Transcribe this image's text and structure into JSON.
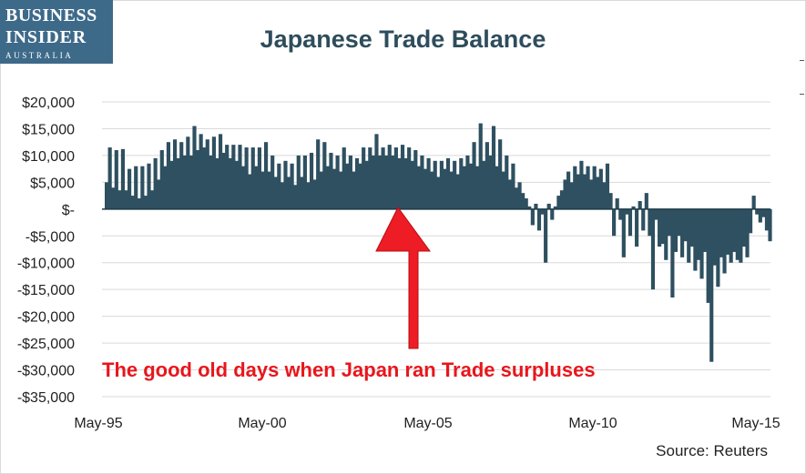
{
  "logo": {
    "line1": "BUSINESS",
    "line2": "INSIDER",
    "line3": "AUSTRALIA"
  },
  "annotation": "The good old days when Japan ran Trade surpluses",
  "colors": {
    "bars": "#2e5060",
    "title": "#2e4d5c",
    "annotation": "#e8161c",
    "grid": "#d9d9d9",
    "arrow": "#ee1c24"
  },
  "chart_data": {
    "type": "bar",
    "title": "Japanese Trade Balance",
    "source": "Source: Reuters",
    "xlabel": "",
    "ylabel": "",
    "ylim": [
      -35000,
      20000
    ],
    "yticks": [
      20000,
      15000,
      10000,
      5000,
      0,
      -5000,
      -10000,
      -15000,
      -20000,
      -25000,
      -30000,
      -35000
    ],
    "ytick_labels": [
      "$20,000",
      "$15,000",
      "$10,000",
      "$5,000",
      "$-",
      "-$5,000",
      "-$10,000",
      "-$15,000",
      "-$20,000",
      "-$25,000",
      "-$30,000",
      "-$35,000"
    ],
    "xtick_labels": [
      "May-95",
      "May-00",
      "May-05",
      "May-10",
      "May-15"
    ],
    "grid": true,
    "legend": "none",
    "keyframes": [
      [
        0,
        5000
      ],
      [
        1,
        11500
      ],
      [
        2,
        4000
      ],
      [
        3,
        11000
      ],
      [
        4,
        3500
      ],
      [
        5,
        11200
      ],
      [
        6,
        3500
      ],
      [
        7,
        7500
      ],
      [
        8,
        2500
      ],
      [
        9,
        8000
      ],
      [
        10,
        2000
      ],
      [
        11,
        8000
      ],
      [
        12,
        2500
      ],
      [
        13,
        8500
      ],
      [
        14,
        3500
      ],
      [
        15,
        9500
      ],
      [
        16,
        5500
      ],
      [
        17,
        11000
      ],
      [
        18,
        8000
      ],
      [
        19,
        12500
      ],
      [
        20,
        9000
      ],
      [
        21,
        13000
      ],
      [
        22,
        9500
      ],
      [
        23,
        12500
      ],
      [
        24,
        10000
      ],
      [
        25,
        13500
      ],
      [
        26,
        10000
      ],
      [
        27,
        15500
      ],
      [
        28,
        11000
      ],
      [
        29,
        14000
      ],
      [
        30,
        11500
      ],
      [
        31,
        13000
      ],
      [
        32,
        10000
      ],
      [
        33,
        13500
      ],
      [
        34,
        9500
      ],
      [
        35,
        14000
      ],
      [
        36,
        10500
      ],
      [
        37,
        12000
      ],
      [
        38,
        9500
      ],
      [
        39,
        12000
      ],
      [
        40,
        9000
      ],
      [
        41,
        12000
      ],
      [
        42,
        8000
      ],
      [
        43,
        11500
      ],
      [
        44,
        6500
      ],
      [
        45,
        11500
      ],
      [
        46,
        8000
      ],
      [
        47,
        11500
      ],
      [
        48,
        7000
      ],
      [
        49,
        12500
      ],
      [
        50,
        7000
      ],
      [
        51,
        10000
      ],
      [
        52,
        6000
      ],
      [
        53,
        8500
      ],
      [
        54,
        5000
      ],
      [
        55,
        9000
      ],
      [
        56,
        6000
      ],
      [
        57,
        8500
      ],
      [
        58,
        4500
      ],
      [
        59,
        10000
      ],
      [
        60,
        6000
      ],
      [
        61,
        10000
      ],
      [
        62,
        5000
      ],
      [
        63,
        10500
      ],
      [
        64,
        5500
      ],
      [
        65,
        13000
      ],
      [
        66,
        7000
      ],
      [
        67,
        12500
      ],
      [
        68,
        8000
      ],
      [
        69,
        10500
      ],
      [
        70,
        7500
      ],
      [
        71,
        10000
      ],
      [
        72,
        7000
      ],
      [
        73,
        11500
      ],
      [
        74,
        8500
      ],
      [
        75,
        10000
      ],
      [
        76,
        7000
      ],
      [
        77,
        9500
      ],
      [
        78,
        8500
      ],
      [
        79,
        11500
      ],
      [
        80,
        9000
      ],
      [
        81,
        11500
      ],
      [
        82,
        10000
      ],
      [
        83,
        14000
      ],
      [
        84,
        10000
      ],
      [
        85,
        11500
      ],
      [
        86,
        10000
      ],
      [
        87,
        12000
      ],
      [
        88,
        10000
      ],
      [
        89,
        11500
      ],
      [
        90,
        9500
      ],
      [
        91,
        12000
      ],
      [
        92,
        9500
      ],
      [
        93,
        11500
      ],
      [
        94,
        9000
      ],
      [
        95,
        11000
      ],
      [
        96,
        8000
      ],
      [
        97,
        10000
      ],
      [
        98,
        7500
      ],
      [
        99,
        9500
      ],
      [
        100,
        7000
      ],
      [
        101,
        9000
      ],
      [
        102,
        6000
      ],
      [
        103,
        9000
      ],
      [
        104,
        7500
      ],
      [
        105,
        9500
      ],
      [
        106,
        7000
      ],
      [
        107,
        9000
      ],
      [
        108,
        6500
      ],
      [
        109,
        9500
      ],
      [
        110,
        8000
      ],
      [
        111,
        10000
      ],
      [
        112,
        8500
      ],
      [
        113,
        12500
      ],
      [
        114,
        8000
      ],
      [
        115,
        16000
      ],
      [
        116,
        9000
      ],
      [
        117,
        12500
      ],
      [
        118,
        10000
      ],
      [
        119,
        15500
      ],
      [
        120,
        8000
      ],
      [
        121,
        13000
      ],
      [
        122,
        7000
      ],
      [
        123,
        10000
      ],
      [
        124,
        5500
      ],
      [
        125,
        8500
      ],
      [
        126,
        4000
      ],
      [
        127,
        5000
      ],
      [
        128,
        3000
      ],
      [
        129,
        2000
      ],
      [
        130,
        500
      ],
      [
        131,
        -3000
      ],
      [
        132,
        1000
      ],
      [
        133,
        -4000
      ],
      [
        134,
        -1000
      ],
      [
        135,
        -10000
      ],
      [
        136,
        1000
      ],
      [
        137,
        -2000
      ],
      [
        138,
        500
      ],
      [
        139,
        2500
      ],
      [
        140,
        3500
      ],
      [
        141,
        5500
      ],
      [
        142,
        7000
      ],
      [
        143,
        5000
      ],
      [
        144,
        8000
      ],
      [
        145,
        6500
      ],
      [
        146,
        9000
      ],
      [
        147,
        6500
      ],
      [
        148,
        8000
      ],
      [
        149,
        5500
      ],
      [
        150,
        8000
      ],
      [
        151,
        6000
      ],
      [
        152,
        7500
      ],
      [
        153,
        5000
      ],
      [
        154,
        8500
      ],
      [
        155,
        3000
      ],
      [
        156,
        -5000
      ],
      [
        157,
        2000
      ],
      [
        158,
        -2000
      ],
      [
        159,
        -9000
      ],
      [
        160,
        -1000
      ],
      [
        161,
        -5000
      ],
      [
        162,
        500
      ],
      [
        163,
        -7000
      ],
      [
        164,
        1500
      ],
      [
        165,
        -4000
      ],
      [
        166,
        3000
      ],
      [
        167,
        -5000
      ],
      [
        168,
        -15000
      ],
      [
        169,
        -2000
      ],
      [
        170,
        -7000
      ],
      [
        171,
        -6500
      ],
      [
        172,
        -9500
      ],
      [
        173,
        -5000
      ],
      [
        174,
        -16500
      ],
      [
        175,
        -8000
      ],
      [
        176,
        -5000
      ],
      [
        177,
        -9000
      ],
      [
        178,
        -6000
      ],
      [
        179,
        -10000
      ],
      [
        180,
        -7000
      ],
      [
        181,
        -11500
      ],
      [
        182,
        -9500
      ],
      [
        183,
        -13000
      ],
      [
        184,
        -8000
      ],
      [
        185,
        -17500
      ],
      [
        186,
        -28500
      ],
      [
        187,
        -10500
      ],
      [
        188,
        -14500
      ],
      [
        189,
        -9000
      ],
      [
        190,
        -12000
      ],
      [
        191,
        -8500
      ],
      [
        192,
        -10000
      ],
      [
        193,
        -8000
      ],
      [
        194,
        -9500
      ],
      [
        195,
        -10000
      ],
      [
        196,
        -7000
      ],
      [
        197,
        -9000
      ],
      [
        198,
        -4500
      ],
      [
        199,
        2500
      ],
      [
        200,
        -1000
      ],
      [
        201,
        -2500
      ],
      [
        202,
        -1500
      ],
      [
        203,
        -4000
      ],
      [
        204,
        -6000
      ]
    ]
  }
}
